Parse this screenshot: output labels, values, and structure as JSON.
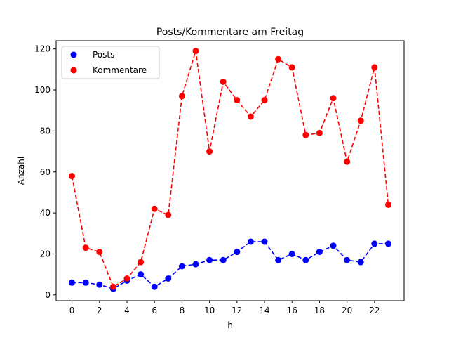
{
  "chart_data": {
    "type": "line",
    "title": "Posts/Kommentare am Freitag",
    "xlabel": "h",
    "ylabel": "Anzahl",
    "x": [
      0,
      1,
      2,
      3,
      4,
      5,
      6,
      7,
      8,
      9,
      10,
      11,
      12,
      13,
      14,
      15,
      16,
      17,
      18,
      19,
      20,
      21,
      22,
      23
    ],
    "xlim": [
      -1.15,
      24.15
    ],
    "ylim": [
      -2.8,
      124.0
    ],
    "xticks": [
      0,
      2,
      4,
      6,
      8,
      10,
      12,
      14,
      16,
      18,
      20,
      22
    ],
    "yticks": [
      0,
      20,
      40,
      60,
      80,
      100,
      120
    ],
    "grid": false,
    "legend": "top-left",
    "series": [
      {
        "name": "Posts",
        "color": "#0000ff",
        "marker": "circle",
        "linestyle": "dashed",
        "values": [
          6,
          6,
          5,
          3,
          7,
          10,
          4,
          8,
          14,
          15,
          17,
          17,
          21,
          26,
          26,
          17,
          20,
          17,
          21,
          24,
          17,
          16,
          25,
          25
        ]
      },
      {
        "name": "Kommentare",
        "color": "#ff0000",
        "marker": "circle",
        "linestyle": "dashed",
        "values": [
          58,
          23,
          21,
          4,
          8,
          16,
          42,
          39,
          97,
          119,
          70,
          104,
          95,
          87,
          95,
          115,
          111,
          78,
          79,
          96,
          65,
          85,
          111,
          44
        ]
      }
    ]
  }
}
